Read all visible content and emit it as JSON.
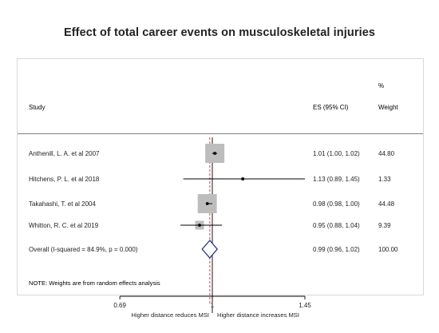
{
  "title": "Effect of total career events on musculoskeletal injuries",
  "chart_data": {
    "type": "forest",
    "headers": {
      "study": "Study",
      "es": "ES (95% CI)",
      "weight_top": "%",
      "weight": "Weight"
    },
    "studies": [
      {
        "label": "Anthenill, L. A. et al 2007",
        "es": 1.01,
        "lo": 1.0,
        "hi": 1.02,
        "es_text": "1.01 (1.00, 1.02)",
        "weight": 44.8,
        "weight_text": "44.80"
      },
      {
        "label": "Hitchens, P. L. et al 2018",
        "es": 1.13,
        "lo": 0.89,
        "hi": 1.45,
        "es_text": "1.13 (0.89, 1.45)",
        "weight": 1.33,
        "weight_text": "1.33"
      },
      {
        "label": "Takahashi, T. et al 2004",
        "es": 0.98,
        "lo": 0.98,
        "hi": 1.0,
        "es_text": "0.98 (0.98, 1.00)",
        "weight": 44.48,
        "weight_text": "44.48"
      },
      {
        "label": "Whitton, R. C. et al 2019",
        "es": 0.95,
        "lo": 0.88,
        "hi": 1.04,
        "es_text": "0.95 (0.88, 1.04)",
        "weight": 9.39,
        "weight_text": "9.39"
      }
    ],
    "overall": {
      "label": "Overall  (I-squared = 84.9%, p = 0.000)",
      "es": 0.99,
      "lo": 0.96,
      "hi": 1.02,
      "es_text": "0.99 (0.96, 1.02)",
      "weight_text": "100.00"
    },
    "note": "NOTE: Weights are from random effects analysis",
    "x_axis": {
      "scale": "log",
      "ticks": [
        0.69,
        1,
        1.45
      ],
      "tick_labels": [
        "0.69",
        "1",
        "1.45"
      ],
      "null_value": 1
    },
    "left_label": "Higher distance reduces MSI",
    "right_label": "Higher distance increases MSI"
  }
}
